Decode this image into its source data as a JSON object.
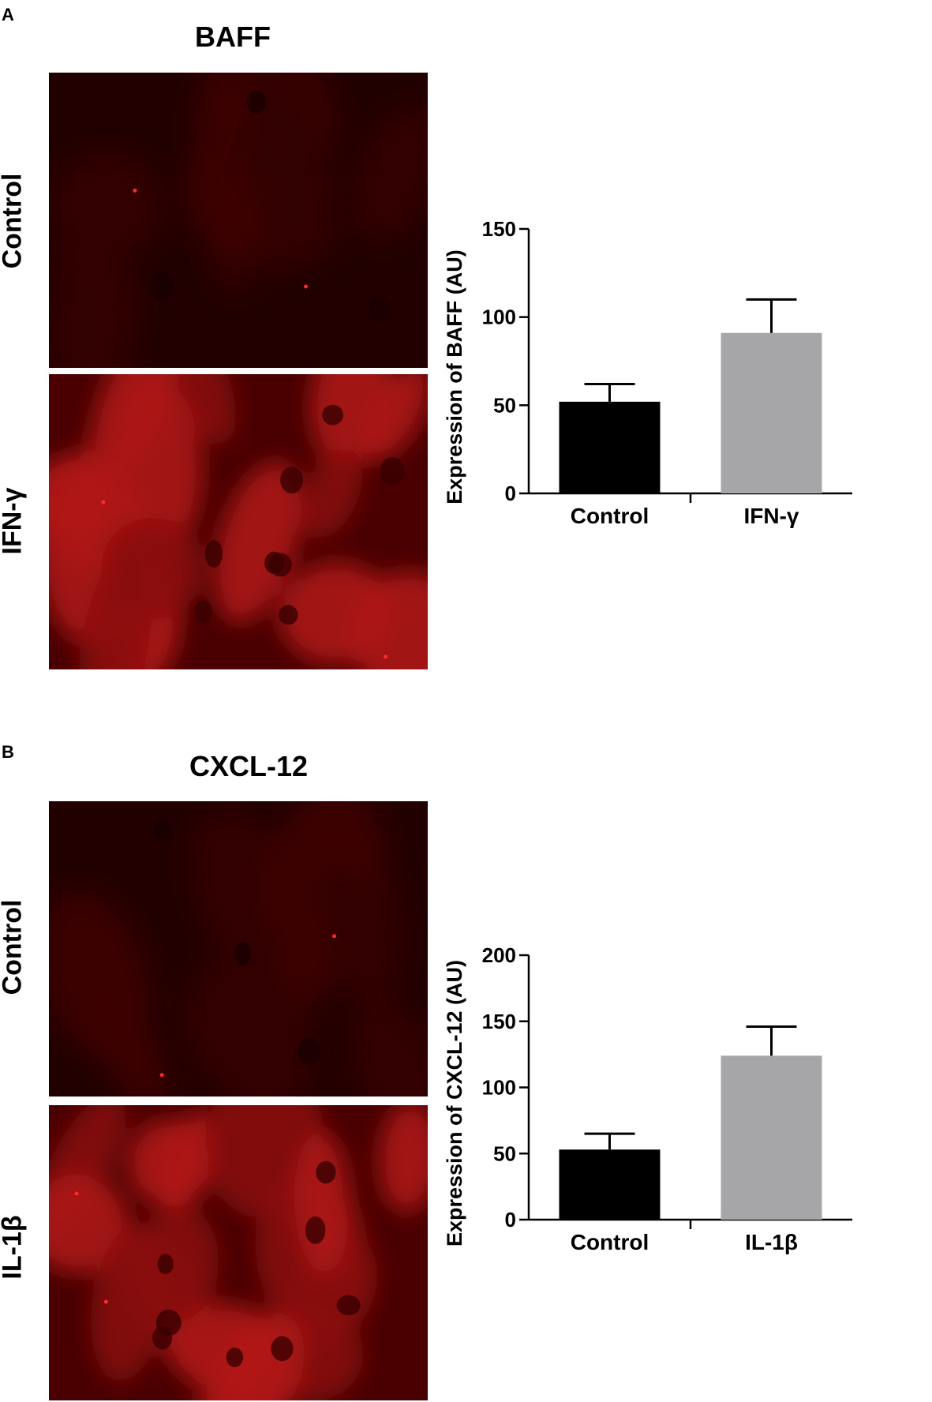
{
  "panels": [
    {
      "letter": "A",
      "micro_title": "BAFF",
      "rows": [
        {
          "label": "Control",
          "brightness": "dim"
        },
        {
          "label": "IFN-γ",
          "brightness": "bright"
        }
      ]
    },
    {
      "letter": "B",
      "micro_title": "CXCL-12",
      "rows": [
        {
          "label": "Control",
          "brightness": "dim"
        },
        {
          "label": "IL-1β",
          "brightness": "bright"
        }
      ]
    }
  ],
  "chart_data": [
    {
      "type": "bar",
      "categories": [
        "Control",
        "IFN-γ"
      ],
      "values": [
        52,
        91
      ],
      "errors": [
        10,
        19
      ],
      "colors": [
        "#000000",
        "#a6a6a8"
      ],
      "ylabel": "Expression of BAFF (AU)",
      "ylim": [
        0,
        150
      ],
      "yticks": [
        0,
        50,
        100,
        150
      ],
      "grid": false,
      "legend": "none"
    },
    {
      "type": "bar",
      "categories": [
        "Control",
        "IL-1β"
      ],
      "values": [
        53,
        124
      ],
      "errors": [
        12,
        22
      ],
      "colors": [
        "#000000",
        "#a6a6a8"
      ],
      "ylabel": "Expression of CXCL-12 (AU)",
      "ylim": [
        0,
        200
      ],
      "yticks": [
        0,
        50,
        100,
        150,
        200
      ],
      "grid": false,
      "legend": "none"
    }
  ]
}
